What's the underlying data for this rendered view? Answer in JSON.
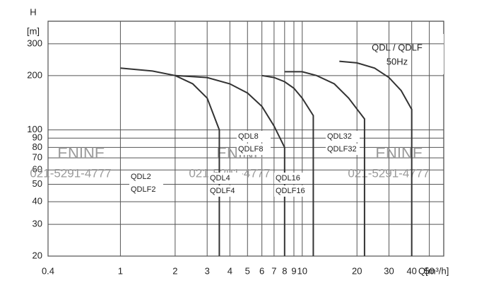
{
  "chart_data": {
    "type": "line",
    "title": "QDL / QDLF",
    "subtitle": "50Hz",
    "y_label_symbol": "H",
    "y_label_unit": "[m]",
    "x_label": "Q[m³/h]",
    "x_log": true,
    "y_log": true,
    "grid": true,
    "xlim": [
      0.4,
      60
    ],
    "ylim": [
      20,
      400
    ],
    "xticks": [
      0.4,
      1,
      2,
      3,
      4,
      5,
      6,
      7,
      8,
      9,
      10,
      20,
      30,
      40,
      50
    ],
    "yticks": [
      20,
      30,
      40,
      50,
      60,
      70,
      80,
      90,
      100,
      200,
      300
    ],
    "watermark": {
      "text": "ENINE",
      "phone": "021-5291-4777"
    },
    "series": [
      {
        "names": [
          "QDL2",
          "QDLF2"
        ],
        "color": "#333333",
        "x": [
          1,
          1.5,
          2,
          2.5,
          3,
          3.5,
          3.5
        ],
        "values": [
          220,
          212,
          200,
          180,
          150,
          100,
          20
        ]
      },
      {
        "names": [
          "QDL4",
          "QDLF4"
        ],
        "color": "#333333",
        "x": [
          2,
          3,
          4,
          5,
          6,
          7,
          8,
          8
        ],
        "values": [
          200,
          195,
          180,
          160,
          135,
          105,
          80,
          20
        ]
      },
      {
        "names": [
          "QDL8",
          "QDLF8"
        ],
        "color": "#333333",
        "x": [
          6,
          7,
          8,
          9,
          10,
          11.5,
          11.5
        ],
        "values": [
          200,
          195,
          185,
          170,
          150,
          120,
          20
        ]
      },
      {
        "names": [
          "QDL16",
          "QDLF16"
        ],
        "color": "#333333",
        "x": [
          8,
          10,
          12,
          15,
          18,
          22,
          22
        ],
        "values": [
          210,
          210,
          200,
          180,
          150,
          115,
          20
        ]
      },
      {
        "names": [
          "QDL32",
          "QDLF32"
        ],
        "color": "#333333",
        "x": [
          16,
          20,
          25,
          30,
          35,
          40,
          40
        ],
        "values": [
          240,
          235,
          220,
          195,
          165,
          130,
          20
        ]
      }
    ]
  }
}
